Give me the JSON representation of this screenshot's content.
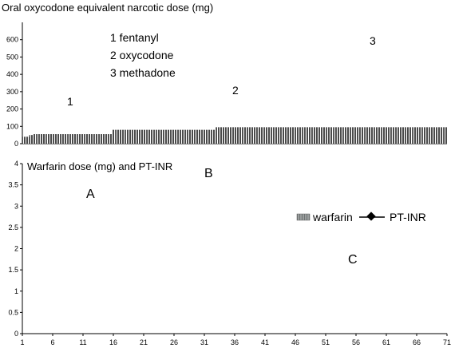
{
  "chart_data": [
    {
      "type": "bar",
      "title": "Oral oxycodone equivalent narcotic dose (mg)",
      "xlabel": "",
      "ylabel": "",
      "ylim": [
        0,
        700
      ],
      "yticks": [
        "0",
        "100",
        "200",
        "300",
        "400",
        "500",
        "600"
      ],
      "grid": false,
      "legend_text": [
        "1 fentanyl",
        "2 oxycodone",
        "3 methadone"
      ],
      "segment_labels": [
        "1",
        "2",
        "3"
      ],
      "series": [
        {
          "name": "fentanyl",
          "color": "#5a5a5a",
          "pattern": "vertical-lines",
          "x": [
            1,
            2,
            3,
            4,
            5,
            6,
            7,
            8,
            9,
            10,
            11,
            12,
            13,
            14,
            15,
            16,
            17,
            18,
            19,
            20,
            21,
            22,
            23,
            24,
            25,
            26
          ],
          "values": [
            40,
            40,
            50,
            55,
            55,
            55,
            55,
            55,
            55,
            55,
            55,
            55,
            55,
            55,
            55,
            55,
            55,
            55,
            55,
            55,
            55,
            55,
            55,
            55,
            55,
            55
          ]
        },
        {
          "name": "fentanyl",
          "color": "#5a5a5a",
          "pattern": "vertical-lines",
          "x": [
            27,
            28,
            29,
            30,
            31,
            32,
            33,
            34,
            35,
            36,
            37,
            38,
            39,
            40,
            41,
            42,
            43,
            44,
            45,
            46,
            47,
            48,
            49,
            50,
            51,
            52,
            53,
            54,
            55,
            56
          ],
          "values": [
            80,
            80,
            80,
            80,
            80,
            80,
            80,
            80,
            80,
            80,
            80,
            80,
            80,
            80,
            80,
            80,
            80,
            80,
            80,
            80,
            80,
            80,
            80,
            80,
            80,
            80,
            80,
            80,
            80,
            80
          ]
        },
        {
          "name": "fentanyl",
          "color": "#5a5a5a",
          "pattern": "vertical-lines",
          "x": [
            57,
            58,
            59,
            60,
            61,
            62,
            63,
            64,
            65,
            66,
            67,
            68,
            69,
            70,
            71,
            72,
            73,
            74,
            75,
            76,
            77,
            78,
            79,
            80,
            81,
            82,
            83,
            84,
            85,
            86,
            87,
            88,
            89,
            90,
            91,
            92,
            93,
            94,
            95,
            96,
            97,
            98,
            99,
            100,
            101,
            102,
            103,
            104,
            105,
            106,
            107,
            108,
            109,
            110,
            111,
            112,
            113,
            114,
            115,
            116,
            117,
            118,
            119,
            120,
            121,
            122,
            123
          ],
          "values": [
            95,
            95,
            95,
            95,
            95,
            95,
            95,
            95,
            95,
            95,
            95,
            95,
            95,
            95,
            95,
            95,
            95,
            95,
            95,
            95,
            95,
            95,
            95,
            95,
            95,
            95,
            95,
            95,
            95,
            95,
            95,
            95,
            95,
            95,
            95,
            95,
            95,
            95,
            95,
            95,
            95,
            95,
            95,
            95,
            95,
            95,
            95,
            95,
            95,
            95,
            95,
            95,
            95,
            95,
            95,
            95,
            95,
            95,
            95,
            95,
            95,
            95,
            95,
            95,
            95,
            95,
            95
          ]
        }
      ]
    }
  ]
}
